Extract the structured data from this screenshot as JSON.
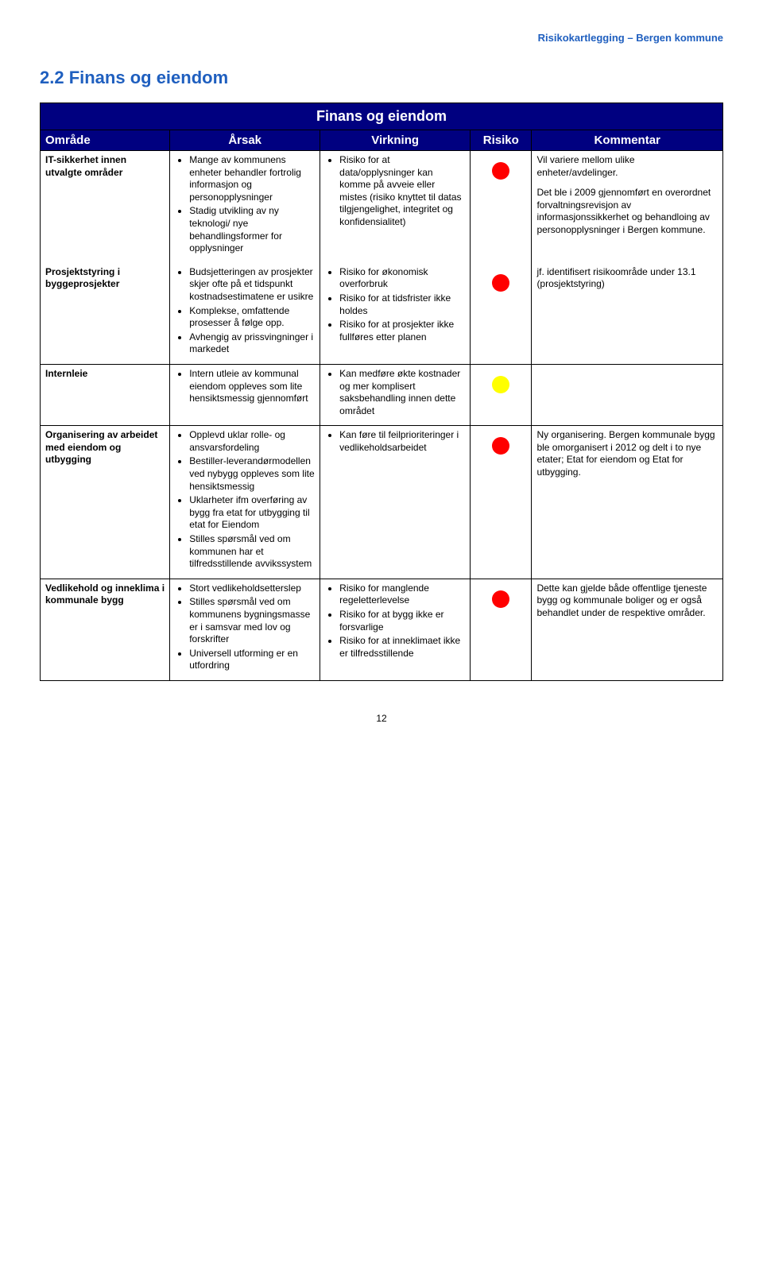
{
  "doc_header_color": "#1f5fbf",
  "doc_header_text": "Risikokartlegging – Bergen kommune",
  "section_color": "#1f5fbf",
  "section_title": "2.2  Finans og eiendom",
  "table_title": "Finans og eiendom",
  "header_bg": "#000080",
  "columns": {
    "omrade": "Område",
    "arsak": "Årsak",
    "virkning": "Virkning",
    "risiko": "Risiko",
    "kommentar": "Kommentar"
  },
  "dot_colors": {
    "red": "#ff0000",
    "yellow": "#ffff00"
  },
  "rows": [
    {
      "omrade": "IT-sikkerhet innen utvalgte områder",
      "arsak": [
        "Mange av kommunens enheter behandler fortrolig informasjon og personopplysninger",
        "Stadig utvikling av ny teknologi/ nye behandlingsformer for opplysninger"
      ],
      "virkning": [
        "Risiko for at data/opplysninger kan komme på avveie eller mistes (risiko knyttet til datas tilgjengelighet, integritet og konfidensialitet)"
      ],
      "risiko": "red",
      "kommentar": [
        "Vil variere mellom ulike enheter/avdelinger.",
        "Det ble i 2009 gjennomført en overordnet forvaltningsrevisjon av informasjonssikkerhet og behandloing av personopplysninger i Bergen kommune."
      ],
      "merge_below": true
    },
    {
      "omrade": "Prosjektstyring i byggeprosjekter",
      "arsak": [
        "Budsjetteringen av prosjekter skjer ofte på et tidspunkt kostnadsestimatene er usikre",
        "Komplekse, omfattende prosesser å følge opp.",
        "Avhengig av prissvingninger i markedet"
      ],
      "virkning": [
        "Risiko for økonomisk overforbruk",
        "Risiko for at tidsfrister ikke holdes",
        "Risiko for at prosjekter ikke fullføres etter planen"
      ],
      "risiko": "red",
      "kommentar": [
        "jf. identifisert risikoområde under 13.1 (prosjektstyring)"
      ],
      "merge_above": true
    },
    {
      "omrade": "Internleie",
      "arsak": [
        "Intern utleie av kommunal eiendom oppleves som lite hensiktsmessig gjennomført"
      ],
      "virkning": [
        "Kan medføre økte kostnader og mer komplisert saksbehandling innen dette området"
      ],
      "risiko": "yellow",
      "kommentar": []
    },
    {
      "omrade": "Organisering av arbeidet med eiendom og utbygging",
      "arsak": [
        "Opplevd uklar rolle- og ansvarsfordeling",
        "Bestiller-leverandørmodellen ved nybygg oppleves som lite hensiktsmessig",
        "Uklarheter ifm overføring av bygg fra etat for utbygging til etat for Eiendom",
        "Stilles spørsmål ved om kommunen har et tilfredsstillende avvikssystem"
      ],
      "virkning": [
        "Kan føre til feilprioriteringer i vedlikeholdsarbeidet"
      ],
      "risiko": "red",
      "kommentar": [
        "Ny organisering. Bergen kommunale bygg ble omorganisert i 2012 og delt i to nye etater; Etat for eiendom og Etat for utbygging."
      ]
    },
    {
      "omrade": "Vedlikehold og inneklima i kommunale bygg",
      "arsak": [
        "Stort vedlikeholdsetterslep",
        "Stilles spørsmål ved om kommunens bygningsmasse er i samsvar med lov og forskrifter",
        "Universell utforming er en utfordring"
      ],
      "virkning": [
        "Risiko for manglende regeletterlevelse",
        "Risiko for at bygg ikke er forsvarlige",
        "Risiko for at inneklimaet ikke er tilfredsstillende"
      ],
      "risiko": "red",
      "kommentar": [
        "Dette kan gjelde både offentlige tjeneste bygg og kommunale boliger og er også behandlet under de respektive områder."
      ]
    }
  ],
  "page_number": "12"
}
